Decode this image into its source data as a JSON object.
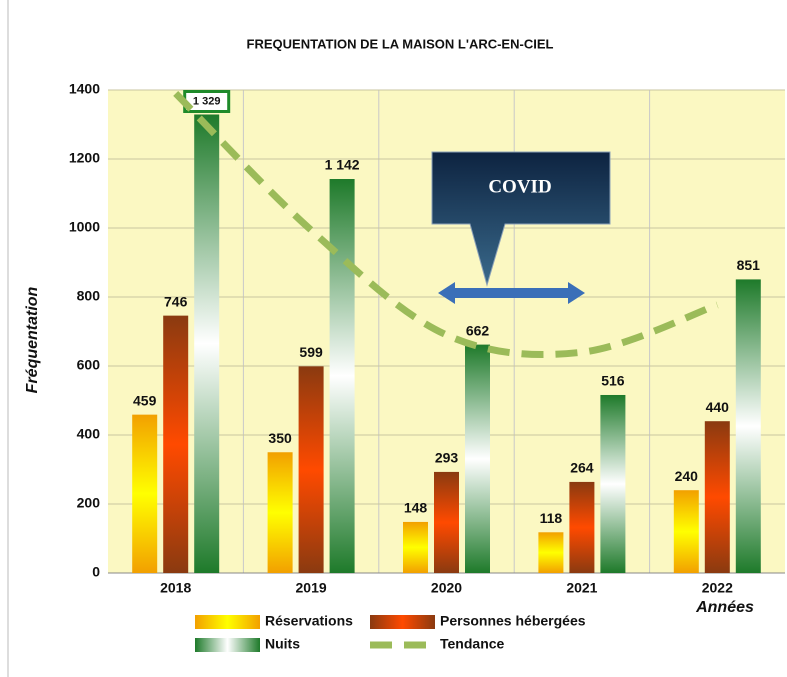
{
  "chart_data": {
    "type": "bar",
    "title": "FREQUENTATION DE LA MAISON L'ARC-EN-CIEL",
    "y_label": "Fréquentation",
    "x_label": "Années",
    "annotation": "COVID",
    "categories": [
      "2018",
      "2019",
      "2020",
      "2021",
      "2022"
    ],
    "series": [
      {
        "name": "Réservations",
        "color": "#f2a000",
        "values": [
          459,
          350,
          148,
          118,
          240
        ]
      },
      {
        "name": "Personnes hébergées",
        "color": "#8a3a10",
        "values": [
          746,
          599,
          293,
          264,
          440
        ]
      },
      {
        "name": "Nuits",
        "color": "#1e7a2a",
        "values": [
          1329,
          1142,
          662,
          516,
          851
        ],
        "value_labels": [
          "1 329",
          "1 142",
          "662",
          "516",
          "851"
        ]
      },
      {
        "name": "Tendance",
        "color": "#9bbb59",
        "type": "trend",
        "values": [
          1390,
          994,
          690,
          640,
          777
        ]
      }
    ],
    "ylim": [
      0,
      1400
    ],
    "yticks": [
      0,
      200,
      400,
      600,
      800,
      1000,
      1200,
      1400
    ],
    "grid": true
  }
}
